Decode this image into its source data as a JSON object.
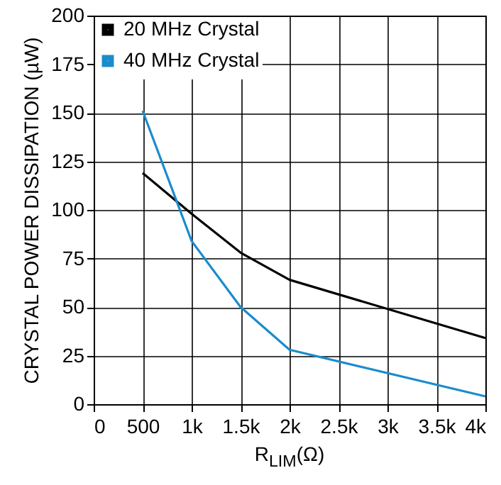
{
  "chart_data": {
    "type": "line",
    "xlabel": "R$_{LIM}$(Ω)",
    "ylabel": "CRYSTAL POWER DISSIPATION (µW)",
    "x": [
      500,
      1000,
      1500,
      2000,
      4000
    ],
    "series": [
      {
        "name": "20 MHz Crystal",
        "color": "#000000",
        "values": [
          119,
          98,
          78,
          64,
          34
        ]
      },
      {
        "name": "40 MHz Crystal",
        "color": "#1a8ccc",
        "values": [
          151,
          84,
          50,
          28,
          4
        ]
      }
    ],
    "xlim": [
      0,
      4000
    ],
    "ylim": [
      0,
      200
    ],
    "xticks": [
      0,
      500,
      {
        "value": 1000,
        "label": "1k"
      },
      {
        "value": 1500,
        "label": "1.5k"
      },
      {
        "value": 2000,
        "label": "2k"
      },
      {
        "value": 2500,
        "label": "2.5k"
      },
      {
        "value": 3000,
        "label": "3k"
      },
      {
        "value": 3500,
        "label": "3.5k"
      },
      {
        "value": 4000,
        "label": "4k"
      }
    ],
    "yticks": [
      0,
      25,
      50,
      75,
      100,
      125,
      150,
      175,
      200
    ],
    "grid": true,
    "legend": "top left"
  }
}
